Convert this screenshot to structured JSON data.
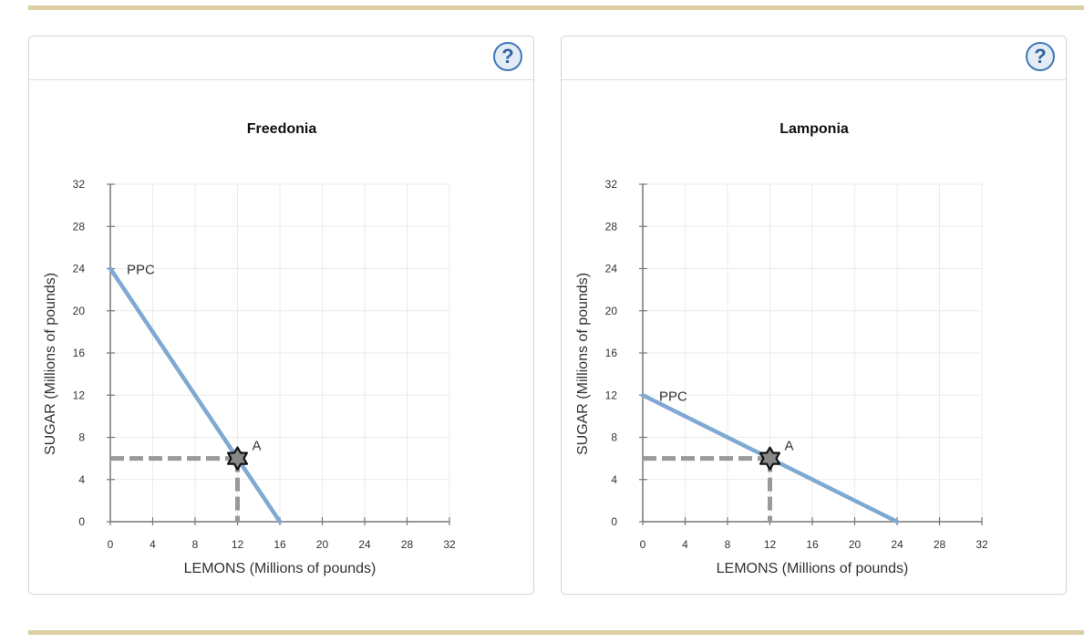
{
  "help_symbol": "?",
  "chart_data": [
    {
      "type": "line",
      "title": "Freedonia",
      "xlabel": "LEMONS (Millions of pounds)",
      "ylabel": "SUGAR (Millions of pounds)",
      "xlim": [
        0,
        32
      ],
      "ylim": [
        0,
        32
      ],
      "xticks": [
        "0",
        "4",
        "8",
        "12",
        "16",
        "20",
        "24",
        "28",
        "32"
      ],
      "yticks": [
        "0",
        "4",
        "8",
        "12",
        "16",
        "20",
        "24",
        "28",
        "32"
      ],
      "grid": true,
      "series": [
        {
          "name": "PPC",
          "points": [
            [
              0,
              24
            ],
            [
              16,
              0
            ]
          ],
          "color": "#7fa9d2"
        }
      ],
      "points": [
        {
          "label": "A",
          "x": 12,
          "y": 6
        }
      ],
      "colors": {
        "ppc": "#7fa9d2",
        "guide": "#999999",
        "marker_fill": "#888888"
      }
    },
    {
      "type": "line",
      "title": "Lamponia",
      "xlabel": "LEMONS (Millions of pounds)",
      "ylabel": "SUGAR (Millions of pounds)",
      "xlim": [
        0,
        32
      ],
      "ylim": [
        0,
        32
      ],
      "xticks": [
        "0",
        "4",
        "8",
        "12",
        "16",
        "20",
        "24",
        "28",
        "32"
      ],
      "yticks": [
        "0",
        "4",
        "8",
        "12",
        "16",
        "20",
        "24",
        "28",
        "32"
      ],
      "grid": true,
      "series": [
        {
          "name": "PPC",
          "points": [
            [
              0,
              12
            ],
            [
              24,
              0
            ]
          ],
          "color": "#7fa9d2"
        }
      ],
      "points": [
        {
          "label": "A",
          "x": 12,
          "y": 6
        }
      ],
      "colors": {
        "ppc": "#7fa9d2",
        "guide": "#999999",
        "marker_fill": "#888888"
      }
    }
  ]
}
